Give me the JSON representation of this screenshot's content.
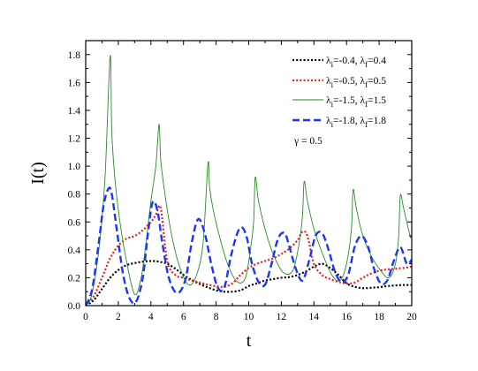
{
  "chart_data": {
    "type": "line",
    "xlabel": "t",
    "ylabel": "I(t)",
    "xlim": [
      0,
      20
    ],
    "ylim": [
      0,
      1.9
    ],
    "x_ticks": [
      0,
      2,
      4,
      6,
      8,
      10,
      12,
      14,
      16,
      18,
      20
    ],
    "y_ticks": [
      0.0,
      0.2,
      0.4,
      0.6,
      0.8,
      1.0,
      1.2,
      1.4,
      1.6,
      1.8
    ],
    "x_tick_labels": [
      "0",
      "2",
      "4",
      "6",
      "8",
      "10",
      "12",
      "14",
      "16",
      "18",
      "20"
    ],
    "y_tick_labels": [
      "0.0",
      "0.2",
      "0.4",
      "0.6",
      "0.8",
      "1.0",
      "1.2",
      "1.4",
      "1.6",
      "1.8"
    ],
    "grid": false,
    "legend_position": "top-right",
    "annotation": "γ = 0.5",
    "series": [
      {
        "name": "λi=-0.4, λf=0.4",
        "legend_parts": {
          "a": "λ",
          "sub1": "i",
          "b": "=-0.4, λ",
          "sub2": "f",
          "c": "=0.4"
        },
        "color": "#000000",
        "style": "dotted",
        "x": [
          0,
          0.5,
          1,
          1.5,
          2,
          2.5,
          3,
          3.5,
          4,
          4.5,
          5,
          5.5,
          6,
          6.5,
          7,
          7.5,
          8,
          8.5,
          9,
          9.5,
          10,
          10.5,
          11,
          11.5,
          12,
          12.5,
          13,
          13.5,
          14,
          14.5,
          15,
          15.5,
          16,
          16.5,
          17,
          17.5,
          18,
          18.5,
          19,
          19.5,
          20
        ],
        "y": [
          0,
          0.04,
          0.12,
          0.2,
          0.255,
          0.29,
          0.305,
          0.315,
          0.32,
          0.315,
          0.3,
          0.265,
          0.22,
          0.185,
          0.155,
          0.13,
          0.11,
          0.1,
          0.1,
          0.11,
          0.14,
          0.16,
          0.18,
          0.19,
          0.2,
          0.205,
          0.22,
          0.245,
          0.28,
          0.3,
          0.27,
          0.22,
          0.16,
          0.135,
          0.125,
          0.128,
          0.132,
          0.14,
          0.145,
          0.148,
          0.148
        ]
      },
      {
        "name": "λi=-0.5, λf=0.5",
        "legend_parts": {
          "a": "λ",
          "sub1": "i",
          "b": "=-0.5, λ",
          "sub2": "f",
          "c": "=0.5"
        },
        "color": "#e8201c",
        "style": "dotted",
        "x": [
          0,
          0.5,
          1,
          1.5,
          2,
          2.5,
          3,
          3.5,
          4,
          4.3,
          4.6,
          5,
          5.5,
          6,
          6.5,
          7,
          7.5,
          8,
          8.5,
          9,
          9.5,
          10,
          10.5,
          11,
          11.5,
          12,
          12.5,
          13,
          13.3,
          13.6,
          14,
          14.5,
          15,
          15.5,
          16,
          16.5,
          17,
          17.5,
          18,
          18.5,
          19,
          19.5,
          20
        ],
        "y": [
          0,
          0.07,
          0.2,
          0.34,
          0.43,
          0.48,
          0.5,
          0.54,
          0.6,
          0.65,
          0.7,
          0.32,
          0.22,
          0.2,
          0.18,
          0.165,
          0.15,
          0.14,
          0.135,
          0.16,
          0.22,
          0.27,
          0.3,
          0.32,
          0.34,
          0.37,
          0.41,
          0.47,
          0.53,
          0.5,
          0.3,
          0.22,
          0.19,
          0.17,
          0.16,
          0.165,
          0.2,
          0.23,
          0.25,
          0.26,
          0.265,
          0.27,
          0.28
        ]
      },
      {
        "name": "λi=-1.5, λf=1.5",
        "legend_parts": {
          "a": "λ",
          "sub1": "i",
          "b": "=-1.5, λ",
          "sub2": "f",
          "c": "=1.5"
        },
        "color": "#2a8a2a",
        "style": "solid",
        "x": [
          0,
          0.3,
          0.6,
          0.9,
          1.2,
          1.5,
          1.6,
          1.8,
          2.1,
          2.5,
          3,
          3.4,
          3.7,
          4,
          4.3,
          4.5,
          4.6,
          4.8,
          5.2,
          5.7,
          6.3,
          6.8,
          7.2,
          7.5,
          7.6,
          7.8,
          8.2,
          8.7,
          9.3,
          9.8,
          10.1,
          10.3,
          10.4,
          10.6,
          11,
          11.5,
          12.1,
          12.7,
          13.1,
          13.3,
          13.4,
          13.6,
          14,
          14.5,
          15.1,
          15.6,
          16,
          16.3,
          16.4,
          16.6,
          17,
          17.5,
          18.1,
          18.6,
          19,
          19.2,
          19.3,
          19.5,
          19.9,
          20
        ],
        "y": [
          0,
          0.05,
          0.22,
          0.5,
          0.95,
          1.79,
          1.25,
          0.9,
          0.6,
          0.32,
          0.08,
          0.2,
          0.45,
          0.75,
          1.0,
          1.3,
          1.05,
          0.85,
          0.55,
          0.3,
          0.15,
          0.22,
          0.45,
          1.02,
          0.85,
          0.7,
          0.5,
          0.3,
          0.17,
          0.2,
          0.4,
          0.6,
          0.92,
          0.75,
          0.55,
          0.37,
          0.24,
          0.25,
          0.45,
          0.65,
          0.89,
          0.75,
          0.55,
          0.38,
          0.22,
          0.18,
          0.3,
          0.55,
          0.83,
          0.7,
          0.5,
          0.36,
          0.25,
          0.2,
          0.3,
          0.5,
          0.79,
          0.7,
          0.5,
          0.5
        ]
      },
      {
        "name": "λi=-1.8, λf=1.8",
        "legend_parts": {
          "a": "λ",
          "sub1": "i",
          "b": "=-1.8, λ",
          "sub2": "f",
          "c": "=1.8"
        },
        "color": "#1b35ff",
        "style": "dashed",
        "x": [
          0,
          0.4,
          0.8,
          1.1,
          1.4,
          1.6,
          1.9,
          2.3,
          2.7,
          3.1,
          3.5,
          3.8,
          4.1,
          4.4,
          4.7,
          5.1,
          5.6,
          6.1,
          6.5,
          6.9,
          7.3,
          7.7,
          8.1,
          8.5,
          8.9,
          9.3,
          9.6,
          9.9,
          10.2,
          10.6,
          11,
          11.4,
          11.8,
          12.2,
          12.5,
          12.9,
          13.3,
          13.7,
          14.1,
          14.5,
          14.9,
          15.3,
          15.7,
          16.1,
          16.5,
          16.9,
          17.3,
          17.7,
          18.1,
          18.5,
          18.9,
          19.3,
          19.7,
          20
        ],
        "y": [
          0,
          0.12,
          0.45,
          0.72,
          0.84,
          0.8,
          0.55,
          0.22,
          0.05,
          0.03,
          0.2,
          0.5,
          0.74,
          0.68,
          0.45,
          0.2,
          0.09,
          0.18,
          0.45,
          0.62,
          0.52,
          0.3,
          0.13,
          0.13,
          0.35,
          0.52,
          0.56,
          0.48,
          0.3,
          0.17,
          0.15,
          0.3,
          0.48,
          0.52,
          0.42,
          0.26,
          0.18,
          0.32,
          0.5,
          0.52,
          0.4,
          0.24,
          0.17,
          0.22,
          0.42,
          0.5,
          0.43,
          0.26,
          0.16,
          0.18,
          0.32,
          0.42,
          0.3,
          0.33
        ]
      }
    ]
  }
}
